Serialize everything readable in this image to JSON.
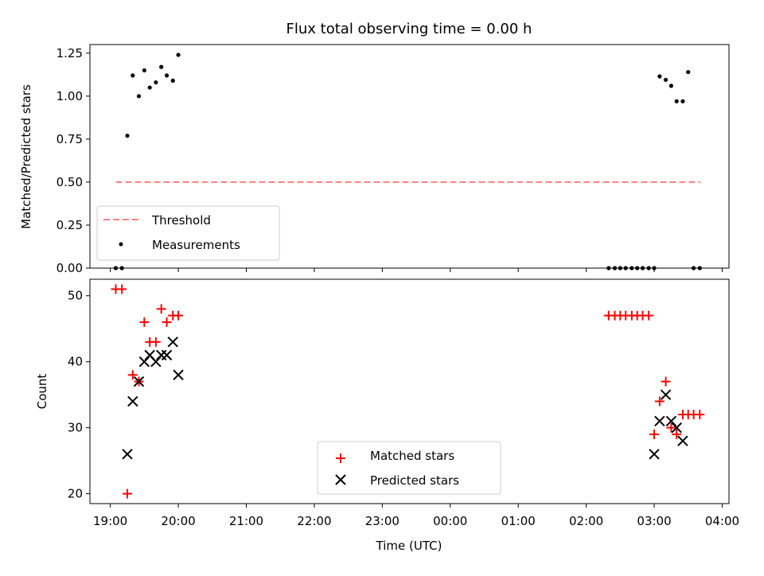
{
  "chart_data": [
    {
      "type": "scatter",
      "title": "Flux total observing time = 0.00 h",
      "xlabel": "",
      "ylabel": "Matched/Predicted stars",
      "ylim": [
        0,
        1.3
      ],
      "yticks": [
        "0.00",
        "0.25",
        "0.50",
        "0.75",
        "1.00",
        "1.25"
      ],
      "xlim_hours": [
        18.7,
        28.1
      ],
      "grid": false,
      "legend_position": "lower-left",
      "series": [
        {
          "name": "Threshold",
          "kind": "line",
          "style": "dashed",
          "color": "#ff7f7f",
          "x": [
            19.08,
            27.68
          ],
          "y": [
            0.5,
            0.5
          ]
        },
        {
          "name": "Measurements",
          "kind": "scatter",
          "marker": "dot",
          "color": "#000000",
          "x": [
            19.08,
            19.17,
            19.25,
            19.33,
            19.42,
            19.5,
            19.58,
            19.67,
            19.75,
            19.83,
            19.92,
            20.0,
            26.33,
            26.42,
            26.5,
            26.58,
            26.67,
            26.75,
            26.83,
            26.92,
            27.0,
            27.08,
            27.17,
            27.25,
            27.33,
            27.42,
            27.5,
            27.58,
            27.67
          ],
          "y": [
            0.0,
            0.0,
            0.77,
            1.12,
            1.0,
            1.15,
            1.05,
            1.08,
            1.17,
            1.12,
            1.09,
            1.24,
            0.0,
            0.0,
            0.0,
            0.0,
            0.0,
            0.0,
            0.0,
            0.0,
            0.0,
            1.115,
            1.095,
            1.06,
            0.97,
            0.97,
            1.14,
            0.0,
            0.0
          ]
        }
      ]
    },
    {
      "type": "scatter",
      "title": "",
      "xlabel": "Time (UTC)",
      "ylabel": "Count",
      "ylim": [
        18.5,
        52.5
      ],
      "yticks": [
        "20",
        "30",
        "40",
        "50"
      ],
      "xticks": [
        "19:00",
        "20:00",
        "21:00",
        "22:00",
        "23:00",
        "00:00",
        "01:00",
        "02:00",
        "03:00",
        "04:00"
      ],
      "xlim_hours": [
        18.7,
        28.1
      ],
      "grid": false,
      "legend_position": "lower-center",
      "series": [
        {
          "name": "Matched stars",
          "kind": "scatter",
          "marker": "plus",
          "color": "#ff0000",
          "x": [
            19.08,
            19.17,
            19.25,
            19.33,
            19.42,
            19.5,
            19.58,
            19.67,
            19.75,
            19.83,
            19.92,
            20.0,
            26.33,
            26.42,
            26.5,
            26.58,
            26.67,
            26.75,
            26.83,
            26.92,
            27.0,
            27.08,
            27.17,
            27.25,
            27.33,
            27.42,
            27.5,
            27.58,
            27.67
          ],
          "y": [
            51,
            51,
            20,
            38,
            37,
            46,
            43,
            43,
            48,
            46,
            47,
            47,
            47,
            47,
            47,
            47,
            47,
            47,
            47,
            47,
            29,
            34,
            37,
            30,
            29,
            32,
            32,
            32,
            32
          ]
        },
        {
          "name": "Predicted stars",
          "kind": "scatter",
          "marker": "x",
          "color": "#000000",
          "x": [
            19.25,
            19.33,
            19.42,
            19.5,
            19.58,
            19.67,
            19.75,
            19.83,
            19.92,
            20.0,
            27.0,
            27.08,
            27.17,
            27.25,
            27.33,
            27.42
          ],
          "y": [
            26,
            34,
            37,
            40,
            41,
            40,
            41,
            41,
            43,
            38,
            26,
            31,
            35,
            31,
            30,
            28
          ]
        }
      ]
    }
  ]
}
